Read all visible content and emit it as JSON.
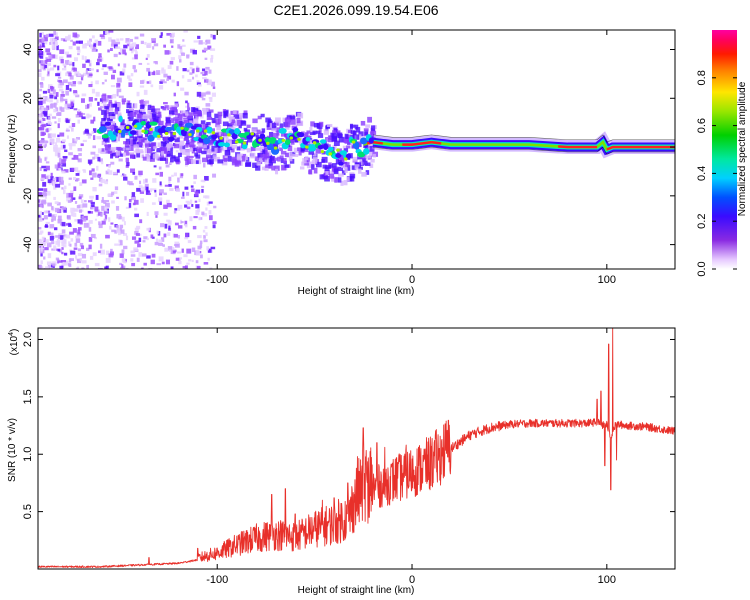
{
  "title": "C2E1.2026.099.19.54.E06",
  "chart_data": [
    {
      "type": "heatmap",
      "title": "C2E1.2026.099.19.54.E06",
      "xlabel": "Height of straight line (km)",
      "ylabel": "Frequency (Hz)",
      "xlim": [
        -192,
        135
      ],
      "ylim": [
        -50,
        48
      ],
      "xticks": [
        -100,
        0,
        100
      ],
      "yticks": [
        -40,
        -20,
        0,
        20,
        40
      ],
      "colorbar": {
        "label": "Normalized spectral amplitude",
        "range": [
          0,
          1
        ],
        "ticks": [
          0.0,
          0.2,
          0.4,
          0.6,
          0.8
        ]
      },
      "ridge_frequency_trace": {
        "x": [
          -155,
          -140,
          -120,
          -100,
          -85,
          -70,
          -60,
          -55,
          -50,
          -45,
          -40,
          -36,
          -32,
          -25,
          -20,
          -10,
          0,
          10,
          20,
          40,
          60,
          80,
          95,
          98,
          100,
          103,
          110,
          135
        ],
        "y": [
          8,
          7,
          6,
          5,
          4,
          2,
          4,
          2,
          0,
          -1,
          -3,
          -4,
          -1,
          1,
          2,
          1,
          1,
          2,
          1,
          1,
          1,
          0,
          0,
          2,
          -1,
          0,
          0,
          0
        ]
      }
    },
    {
      "type": "line",
      "xlabel": "Height of straight line (km)",
      "ylabel": "SNR (10 * v/v)",
      "y_multiplier": "(x10",
      "y_multiplier_exp": "4",
      "xlim": [
        -192,
        135
      ],
      "ylim": [
        0,
        21000
      ],
      "xticks": [
        -100,
        0,
        100
      ],
      "yticks": [
        0.5,
        1.0,
        1.5,
        2.0
      ],
      "ytick_labels": [
        "0.5",
        "1.0",
        "1.5",
        "2.0"
      ],
      "series": [
        {
          "name": "SNR",
          "color": "#e8302a",
          "envelope_x": [
            -192,
            -160,
            -140,
            -120,
            -110,
            -100,
            -90,
            -80,
            -70,
            -60,
            -50,
            -40,
            -32,
            -30,
            -25,
            -20,
            -10,
            0,
            10,
            20,
            30,
            40,
            50,
            60,
            70,
            80,
            90,
            95,
            98,
            100,
            102,
            104,
            106,
            110,
            120,
            135
          ],
          "envelope_y": [
            200,
            200,
            350,
            500,
            800,
            1200,
            1800,
            2300,
            2600,
            2400,
            3000,
            3400,
            4000,
            5000,
            6200,
            6800,
            7500,
            8200,
            9000,
            10500,
            11700,
            12300,
            12600,
            12700,
            12700,
            12700,
            12700,
            12800,
            12500,
            12600,
            11500,
            12400,
            12600,
            12500,
            12400,
            12000
          ],
          "spikes": [
            {
              "x": -135,
              "y": 1000
            },
            {
              "x": -110,
              "y": 1800
            },
            {
              "x": -72,
              "y": 6500
            },
            {
              "x": -65,
              "y": 7000
            },
            {
              "x": -60,
              "y": 4800
            },
            {
              "x": -46,
              "y": 6000
            },
            {
              "x": -40,
              "y": 6200
            },
            {
              "x": -33,
              "y": 7500
            },
            {
              "x": -28,
              "y": 9800
            },
            {
              "x": -25,
              "y": 12300
            },
            {
              "x": -22,
              "y": 4500
            },
            {
              "x": -18,
              "y": 11000
            },
            {
              "x": -14,
              "y": 10600
            },
            {
              "x": -8,
              "y": 9700
            },
            {
              "x": -3,
              "y": 10800
            },
            {
              "x": 10,
              "y": 10700
            },
            {
              "x": 14,
              "y": 10500
            },
            {
              "x": 95,
              "y": 14800
            },
            {
              "x": 97,
              "y": 15500
            },
            {
              "x": 99,
              "y": 9000
            },
            {
              "x": 101,
              "y": 19600
            },
            {
              "x": 102,
              "y": 6900
            },
            {
              "x": 103,
              "y": 21000
            },
            {
              "x": 105,
              "y": 9500
            }
          ]
        }
      ]
    }
  ]
}
